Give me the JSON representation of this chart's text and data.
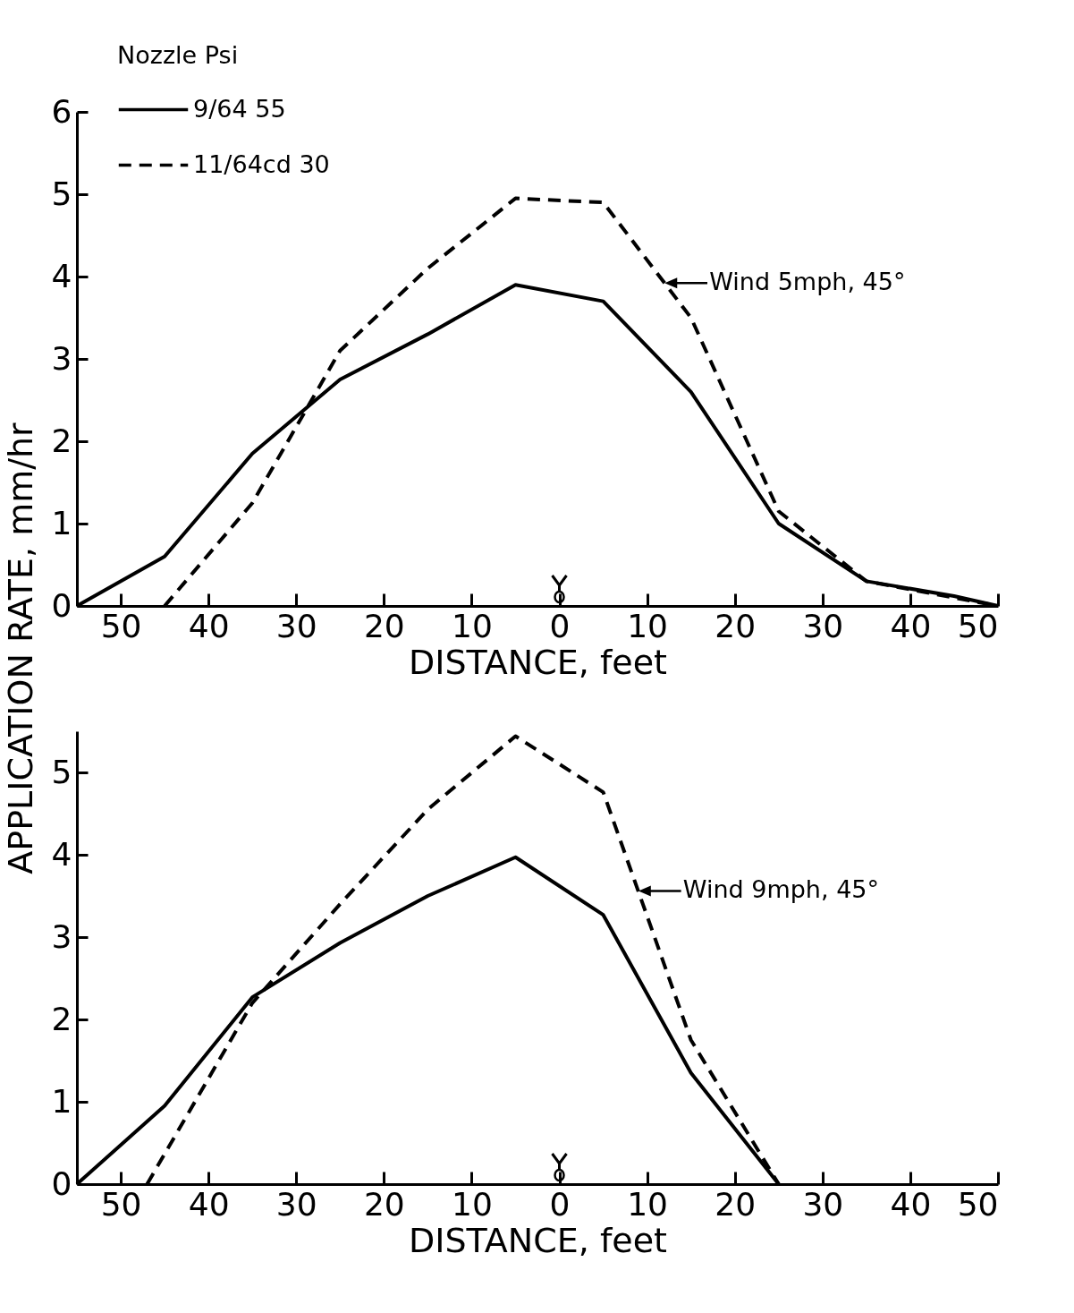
{
  "chart_data": [
    {
      "type": "line",
      "xlabel": "DISTANCE, feet",
      "ylabel": "APPLICATION RATE, mm/hr",
      "legend_title": "Nozzle Psi",
      "legend": "top left",
      "xlim": [
        -55,
        50
      ],
      "ylim": [
        0,
        6
      ],
      "xticks": [
        {
          "value": -50,
          "label": "50"
        },
        {
          "value": -40,
          "label": "40"
        },
        {
          "value": -30,
          "label": "30"
        },
        {
          "value": -20,
          "label": "20"
        },
        {
          "value": -10,
          "label": "10"
        },
        0,
        10,
        20,
        30,
        40,
        50
      ],
      "yticks": [
        0,
        1,
        2,
        3,
        4,
        5,
        6
      ],
      "series": [
        {
          "name": "9/64 55",
          "color": "#000000",
          "line_style": "solid",
          "x": [
            -55,
            -45,
            -35,
            -25,
            -15,
            -5,
            5,
            15,
            25,
            35,
            45,
            50
          ],
          "values": [
            0,
            0.6,
            1.85,
            2.75,
            3.3,
            3.9,
            3.7,
            2.6,
            1.0,
            0.3,
            0.12,
            0
          ]
        },
        {
          "name": "11/64cd 30",
          "color": "#000000",
          "line_style": "dashed",
          "x": [
            -45,
            -35,
            -25,
            -15,
            -5,
            5,
            15,
            25,
            35,
            45,
            50
          ],
          "values": [
            0,
            1.25,
            3.1,
            4.1,
            4.95,
            4.9,
            3.5,
            1.15,
            0.3,
            0.1,
            0
          ]
        }
      ],
      "annotations": [
        {
          "text": "Wind 5mph, 45°",
          "x": 12,
          "y": 3.92
        }
      ]
    },
    {
      "type": "line",
      "xlabel": "DISTANCE, feet",
      "xlim": [
        -55,
        50
      ],
      "ylim": [
        0,
        5.5
      ],
      "xticks": [
        {
          "value": -50,
          "label": "50"
        },
        {
          "value": -40,
          "label": "40"
        },
        {
          "value": -30,
          "label": "30"
        },
        {
          "value": -20,
          "label": "20"
        },
        {
          "value": -10,
          "label": "10"
        },
        0,
        10,
        20,
        30,
        40,
        50
      ],
      "yticks": [
        0,
        1,
        2,
        3,
        4,
        5
      ],
      "series": [
        {
          "color": "#000000",
          "line_style": "solid",
          "x": [
            -55,
            -45,
            -35,
            -25,
            -15,
            -5,
            5,
            15,
            25
          ],
          "values": [
            0,
            0.95,
            2.27,
            2.93,
            3.5,
            3.97,
            3.27,
            1.35,
            0
          ]
        },
        {
          "color": "#000000",
          "line_style": "dashed",
          "x": [
            -47,
            -35,
            -25,
            -15,
            -5,
            5,
            15,
            25
          ],
          "values": [
            0,
            2.2,
            3.4,
            4.55,
            5.44,
            4.76,
            1.75,
            0
          ]
        }
      ],
      "annotations": [
        {
          "text": "Wind 9mph, 45°",
          "x": 9,
          "y": 3.56
        }
      ]
    }
  ]
}
